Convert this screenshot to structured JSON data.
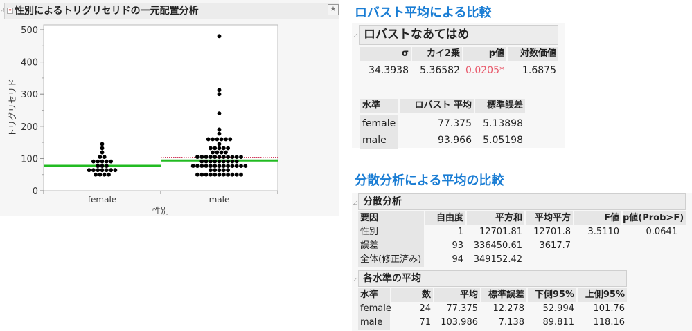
{
  "oneway": {
    "title": "性別によるトリグリセリドの一元配置分析"
  },
  "chart_data": {
    "type": "scatter",
    "title": "",
    "xlabel": "性別",
    "ylabel": "トリグリセリド",
    "categories": [
      "female",
      "male"
    ],
    "ylim": [
      0,
      500
    ],
    "yticks": [
      0,
      100,
      200,
      300,
      400,
      500
    ],
    "grid": false,
    "points": {
      "female": [
        {
          "y": 145,
          "n": 1
        },
        {
          "y": 132,
          "n": 1
        },
        {
          "y": 119,
          "n": 1
        },
        {
          "y": 105,
          "n": 2
        },
        {
          "y": 91,
          "n": 5
        },
        {
          "y": 77,
          "n": 3
        },
        {
          "y": 64,
          "n": 7
        },
        {
          "y": 50,
          "n": 4
        }
      ],
      "male": [
        {
          "y": 480,
          "n": 1
        },
        {
          "y": 313,
          "n": 1
        },
        {
          "y": 300,
          "n": 1
        },
        {
          "y": 240,
          "n": 1
        },
        {
          "y": 190,
          "n": 1
        },
        {
          "y": 177,
          "n": 1
        },
        {
          "y": 160,
          "n": 6
        },
        {
          "y": 145,
          "n": 1
        },
        {
          "y": 132,
          "n": 5
        },
        {
          "y": 119,
          "n": 4
        },
        {
          "y": 105,
          "n": 11
        },
        {
          "y": 91,
          "n": 9
        },
        {
          "y": 77,
          "n": 13
        },
        {
          "y": 64,
          "n": 5
        },
        {
          "y": 50,
          "n": 11
        }
      ]
    },
    "robust_means": {
      "female": 77.375,
      "male": 93.966
    },
    "anova_means": {
      "female": 77.375,
      "male": 103.986
    },
    "colors": {
      "dots": "#000000",
      "robust_mean": "#22bb22",
      "anova_mean": "#d04060"
    }
  },
  "robust": {
    "heading": "ロバスト平均による比較",
    "title": "ロバストなあてはめ",
    "fit_headers": [
      "σ",
      "カイ2乗",
      "p値",
      "対数価値"
    ],
    "fit_values": [
      "34.3938",
      "5.36582",
      "0.0205*",
      "1.6875"
    ],
    "p_color": "#e8586a",
    "level_headers": [
      "水準",
      "ロバスト 平均",
      "標準誤差"
    ],
    "levels": [
      [
        "female",
        "77.375",
        "5.13898"
      ],
      [
        "male",
        "93.966",
        "5.05198"
      ]
    ]
  },
  "anova": {
    "heading": "分散分析による平均の比較",
    "title": "分散分析",
    "headers": [
      "要因",
      "自由度",
      "平方和",
      "平均平方",
      "F値",
      "p値(Prob>F)"
    ],
    "rows": [
      [
        "性別",
        "1",
        "12701.81",
        "12701.8",
        "3.5110",
        "0.0641"
      ],
      [
        "誤差",
        "93",
        "336450.61",
        "3617.7",
        "",
        ""
      ],
      [
        "全体(修正済み)",
        "94",
        "349152.42",
        "",
        "",
        ""
      ]
    ],
    "means_title": "各水準の平均",
    "means_headers": [
      "水準",
      "数",
      "平均",
      "標準誤差",
      "下側95%",
      "上側95%"
    ],
    "means_rows": [
      [
        "female",
        "24",
        "77.375",
        "12.278",
        "52.994",
        "101.76"
      ],
      [
        "male",
        "71",
        "103.986",
        "7.138",
        "89.811",
        "118.16"
      ]
    ]
  }
}
